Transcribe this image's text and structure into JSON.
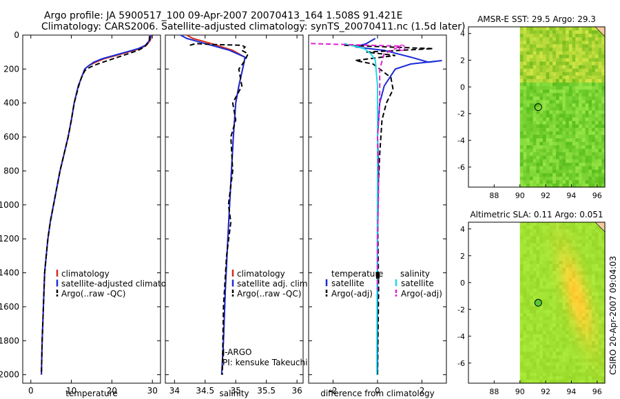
{
  "header": {
    "line1": "Argo profile: JA 5900517_100 09-Apr-2007 20070413_164 1.508S 91.421E",
    "line2": "Climatology: CARS2006. Satellite-adjusted climatology: synTS_20070411.nc (1.5d later)"
  },
  "side_text": "CSIRO 20-Apr-2007 09:04:03",
  "colors": {
    "red": "#d42a1a",
    "blue": "#1a2bd6",
    "black": "#000000",
    "cyan": "#22d8e8",
    "magenta": "#e020d0"
  },
  "chart_data": [
    {
      "id": "temperature",
      "type": "line",
      "xlabel": "temperature",
      "ylabel": "",
      "xlim": [
        -2,
        32
      ],
      "ylim": [
        2050,
        0
      ],
      "xticks": [
        0,
        10,
        20,
        30
      ],
      "yticks": [
        0,
        200,
        400,
        600,
        800,
        1000,
        1200,
        1400,
        1600,
        1800,
        2000
      ],
      "legend": [
        "climatology",
        "satellite-adjusted climatology",
        "Argo(..raw -QC)"
      ],
      "series": [
        {
          "name": "climatology",
          "color": "red",
          "dash": "none",
          "x": [
            29.8,
            29.5,
            28.5,
            27,
            24,
            21,
            18,
            16,
            14.3,
            13.3,
            12.5,
            11.7,
            10.7,
            10,
            9.2,
            8.2,
            7.2,
            6.4,
            5.6,
            4.8,
            4.2,
            3.8,
            3.4,
            3.1,
            2.8,
            2.6
          ],
          "y": [
            0,
            30,
            60,
            80,
            100,
            120,
            140,
            160,
            180,
            200,
            250,
            300,
            400,
            500,
            600,
            700,
            800,
            900,
            1000,
            1100,
            1200,
            1300,
            1400,
            1600,
            1800,
            2000
          ]
        },
        {
          "name": "satellite-adjusted climatology",
          "color": "blue",
          "dash": "none",
          "x": [
            29.7,
            29.3,
            28.3,
            26.5,
            23.5,
            20.5,
            17.5,
            15.5,
            14.3,
            13.3,
            12.5,
            11.7,
            10.7,
            10,
            9.2,
            8.2,
            7.2,
            6.4,
            5.6,
            4.8,
            4.2,
            3.8,
            3.4,
            3.1,
            2.8,
            2.6
          ],
          "y": [
            0,
            30,
            60,
            80,
            100,
            120,
            140,
            160,
            180,
            200,
            250,
            300,
            400,
            500,
            600,
            700,
            800,
            900,
            1000,
            1100,
            1200,
            1300,
            1400,
            1600,
            1800,
            2000
          ]
        },
        {
          "name": "Argo(..raw -QC)",
          "color": "black",
          "dash": "dash",
          "x": [
            29.3,
            29.2,
            28,
            26.5,
            24,
            21.5,
            19,
            16.5,
            14.5,
            13.3,
            12.5,
            11.8,
            10.7,
            10,
            9.2,
            8.2,
            7.2,
            6.4,
            5.6,
            4.8,
            4.2,
            3.8,
            3.4,
            3.1,
            2.8,
            2.6
          ],
          "y": [
            5,
            40,
            70,
            90,
            110,
            130,
            150,
            170,
            190,
            210,
            250,
            300,
            400,
            500,
            600,
            700,
            800,
            900,
            1000,
            1100,
            1200,
            1300,
            1400,
            1600,
            1800,
            2000
          ]
        }
      ]
    },
    {
      "id": "salinity",
      "type": "line",
      "xlabel": "salinity",
      "ylabel": "",
      "xlim": [
        33.85,
        36.1
      ],
      "ylim": [
        2050,
        0
      ],
      "xticks": [
        34,
        34.5,
        35,
        35.5,
        36
      ],
      "legend": [
        "climatology",
        "satellite adj. clim.",
        "Argo(..raw -QC)"
      ],
      "annotation": [
        "J-ARGO",
        "PI: kensuke Takeuchi"
      ],
      "series": [
        {
          "name": "climatology",
          "color": "red",
          "dash": "none",
          "x": [
            34.2,
            34.3,
            34.6,
            34.95,
            35.15,
            35.13,
            35.1,
            35.05,
            35.0,
            34.96,
            34.93,
            34.9,
            34.87,
            34.83,
            34.8,
            34.77
          ],
          "y": [
            0,
            20,
            50,
            90,
            130,
            170,
            220,
            300,
            400,
            600,
            800,
            1000,
            1200,
            1500,
            1800,
            2000
          ]
        },
        {
          "name": "satellite adj. clim.",
          "color": "blue",
          "dash": "none",
          "x": [
            34.1,
            34.2,
            34.5,
            34.9,
            35.15,
            35.13,
            35.1,
            35.05,
            35.0,
            34.96,
            34.93,
            34.9,
            34.87,
            34.83,
            34.8,
            34.77
          ],
          "y": [
            0,
            20,
            50,
            90,
            130,
            170,
            220,
            300,
            400,
            600,
            800,
            1000,
            1200,
            1500,
            1800,
            2000
          ]
        },
        {
          "name": "Argo(..raw -QC)",
          "color": "black",
          "dash": "dash",
          "x": [
            34.25,
            34.35,
            34.6,
            35.1,
            35.15,
            35.1,
            35.2,
            35.15,
            35.05,
            35.1,
            34.95,
            35.0,
            34.92,
            34.95,
            34.88,
            34.92,
            34.85,
            34.8,
            34.78
          ],
          "y": [
            60,
            50,
            55,
            60,
            70,
            90,
            110,
            150,
            200,
            300,
            400,
            500,
            600,
            800,
            1000,
            1100,
            1300,
            1600,
            2000
          ]
        }
      ]
    },
    {
      "id": "difference",
      "type": "line",
      "xlabel": "difference from climatology",
      "ylabel": "",
      "xlim": [
        -3.1,
        3.1
      ],
      "ylim": [
        2050,
        0
      ],
      "xticks": [
        -2,
        0,
        2
      ],
      "legend_left_title": "temperature",
      "legend_right_title": "salinity",
      "legend": [
        "satellite",
        "Argo(-adj)",
        "satellite",
        "Argo(-adj)"
      ],
      "series": [
        {
          "name": "satellite",
          "color": "blue",
          "dash": "none",
          "x": [
            -0.1,
            -0.5,
            -1.0,
            0.3,
            1.5,
            2.3,
            2.9,
            1.5,
            0.8,
            0.3,
            0.1,
            0.0,
            0.05,
            0.0,
            0.0
          ],
          "y": [
            20,
            50,
            70,
            90,
            130,
            160,
            150,
            170,
            200,
            300,
            400,
            600,
            800,
            1200,
            2000
          ]
        },
        {
          "name": "Argo(-adj)",
          "color": "black",
          "dash": "dash",
          "x": [
            -1.5,
            0.5,
            2.5,
            -0.5,
            0.8,
            -1.0,
            -0.2,
            0.6,
            0.7,
            0.4,
            0.2,
            0.1,
            0.0,
            0.05,
            0.0
          ],
          "y": [
            60,
            70,
            80,
            100,
            120,
            150,
            170,
            250,
            320,
            400,
            500,
            700,
            1000,
            1500,
            2000
          ]
        },
        {
          "name": "satellite",
          "color": "cyan",
          "dash": "none",
          "x": [
            -1.5,
            -0.6,
            -0.3,
            -0.1,
            0.0,
            0.0,
            -0.02,
            -0.03
          ],
          "y": [
            50,
            80,
            110,
            150,
            300,
            800,
            1500,
            2000
          ]
        },
        {
          "name": "Argo(-adj)",
          "color": "magenta",
          "dash": "dash",
          "x": [
            -3.0,
            1.0,
            0.8,
            0.3,
            0.1,
            0.1,
            0.0,
            0.05,
            0.0,
            0.0
          ],
          "y": [
            50,
            65,
            80,
            110,
            200,
            400,
            600,
            900,
            1200,
            1500
          ]
        }
      ]
    },
    {
      "id": "sst_map",
      "type": "heatmap",
      "title": "AMSR-E SST: 29.5 Argo: 29.3",
      "xlim": [
        86,
        96.6
      ],
      "ylim": [
        -7.5,
        4.5
      ],
      "xticks": [
        88,
        90,
        92,
        94,
        96
      ],
      "yticks": [
        4,
        2,
        0,
        -2,
        -4,
        -6
      ],
      "data_xlim": [
        90,
        96.6
      ],
      "argo_position": [
        91.421,
        -1.508
      ]
    },
    {
      "id": "sla_map",
      "type": "heatmap",
      "title": "Altimetric SLA: 0.11 Argo: 0.051",
      "xlim": [
        86,
        96.6
      ],
      "ylim": [
        -7.5,
        4.5
      ],
      "xticks": [
        88,
        90,
        92,
        94,
        96
      ],
      "yticks": [
        4,
        2,
        0,
        -2,
        -4,
        -6
      ],
      "data_xlim": [
        90,
        96.6
      ],
      "argo_position": [
        91.421,
        -1.508
      ]
    }
  ]
}
